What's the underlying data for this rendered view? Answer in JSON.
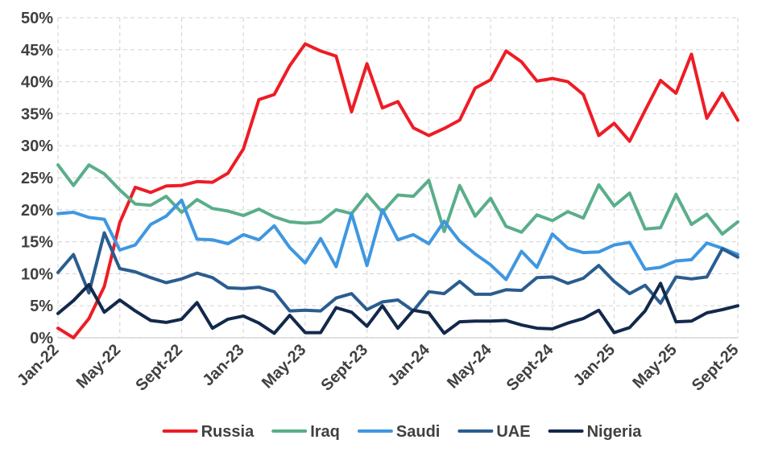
{
  "chart_data": {
    "type": "line",
    "title": "",
    "xlabel": "",
    "ylabel": "",
    "ylim": [
      0,
      50
    ],
    "grid": true,
    "legend_position": "bottom",
    "y_ticks": [
      "0%",
      "5%",
      "10%",
      "15%",
      "20%",
      "25%",
      "30%",
      "35%",
      "40%",
      "45%",
      "50%"
    ],
    "x_tick_labels": [
      {
        "label": "Jan-22",
        "index": 0
      },
      {
        "label": "May-22",
        "index": 4
      },
      {
        "label": "Sept-22",
        "index": 8
      },
      {
        "label": "Jan-23",
        "index": 12
      },
      {
        "label": "May-23",
        "index": 16
      },
      {
        "label": "Sept-23",
        "index": 20
      },
      {
        "label": "Jan-24",
        "index": 24
      },
      {
        "label": "May-24",
        "index": 28
      },
      {
        "label": "Sept-24",
        "index": 32
      },
      {
        "label": "Jan-25",
        "index": 36
      },
      {
        "label": "May-25",
        "index": 40
      },
      {
        "label": "Sept-25",
        "index": 44
      }
    ],
    "n_points": 45,
    "series": [
      {
        "name": "Russia",
        "color": "#ee1c25",
        "values": [
          1.5,
          0,
          3,
          8,
          18,
          23.5,
          22.7,
          23.7,
          23.8,
          24.4,
          24.3,
          25.7,
          29.5,
          37.2,
          38,
          42.5,
          45.9,
          44.8,
          44,
          35.3,
          42.8,
          35.9,
          36.9,
          32.8,
          31.6,
          32.7,
          34,
          39,
          40.3,
          44.8,
          43.1,
          40.1,
          40.5,
          40,
          38,
          31.6,
          33.5,
          30.7,
          35.5,
          40.2,
          38.2,
          44.3,
          34.3,
          38.2,
          34
        ]
      },
      {
        "name": "Iraq",
        "color": "#5aae8a",
        "values": [
          27,
          23.8,
          27,
          25.6,
          23.1,
          20.9,
          20.7,
          22.1,
          19.6,
          21.6,
          20.2,
          19.8,
          19.1,
          20.1,
          18.9,
          18.1,
          17.9,
          18.1,
          20,
          19.4,
          22.4,
          19.6,
          22.3,
          22.1,
          24.6,
          16.6,
          23.8,
          19,
          21.8,
          17.4,
          16.5,
          19.2,
          18.3,
          19.7,
          18.7,
          23.9,
          20.6,
          22.6,
          17,
          17.2,
          22.4,
          17.7,
          19.3,
          16.2,
          18.1
        ]
      },
      {
        "name": "Saudi",
        "color": "#3f97e0",
        "values": [
          19.4,
          19.6,
          18.8,
          18.5,
          13.7,
          14.5,
          17.7,
          19,
          21.5,
          15.4,
          15.3,
          14.7,
          16.1,
          15.3,
          17.5,
          14.1,
          11.7,
          15.5,
          11.1,
          19.4,
          11.3,
          20,
          15.3,
          16.1,
          14.7,
          18.2,
          15.1,
          13.1,
          11.4,
          9.1,
          13.5,
          11,
          16.2,
          14,
          13.3,
          13.4,
          14.5,
          14.9,
          10.7,
          11,
          12,
          12.2,
          14.8,
          14,
          13
        ]
      },
      {
        "name": "UAE",
        "color": "#2a5d8f",
        "values": [
          10.2,
          13,
          7,
          16.4,
          10.8,
          10.3,
          9.4,
          8.6,
          9.2,
          10.1,
          9.4,
          7.8,
          7.7,
          7.9,
          7.2,
          4.2,
          4.3,
          4.2,
          6.2,
          6.9,
          4.4,
          5.6,
          5.9,
          4.2,
          7.2,
          6.9,
          8.8,
          6.8,
          6.8,
          7.5,
          7.4,
          9.4,
          9.5,
          8.5,
          9.3,
          11.3,
          8.8,
          6.9,
          8.2,
          5.4,
          9.5,
          9.2,
          9.5,
          13.9,
          12.6
        ]
      },
      {
        "name": "Nigeria",
        "color": "#13294b",
        "values": [
          3.8,
          5.8,
          8.3,
          4,
          5.9,
          4.2,
          2.7,
          2.4,
          2.9,
          5.5,
          1.5,
          2.9,
          3.4,
          2.3,
          0.7,
          3.5,
          0.8,
          0.8,
          4.7,
          4,
          1.8,
          5,
          1.5,
          4.3,
          3.9,
          0.7,
          2.5,
          2.6,
          2.6,
          2.7,
          2,
          1.5,
          1.4,
          2.3,
          3,
          4.3,
          0.8,
          1.6,
          4.2,
          8.5,
          2.5,
          2.6,
          3.9,
          4.4,
          5
        ]
      }
    ]
  }
}
